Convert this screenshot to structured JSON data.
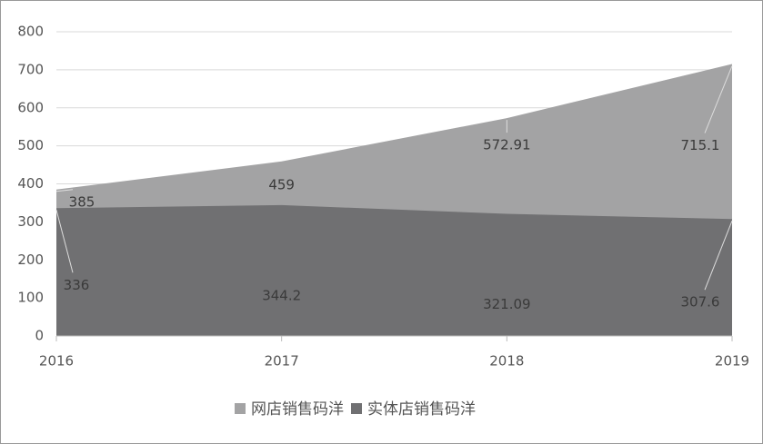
{
  "chart_data": {
    "type": "area",
    "categories": [
      "2016",
      "2017",
      "2018",
      "2019"
    ],
    "series": [
      {
        "name": "网店销售码洋",
        "color": "#a3a3a4",
        "values": [
          385,
          459,
          572.91,
          715.1
        ]
      },
      {
        "name": "实体店销售码洋",
        "color": "#707072",
        "values": [
          336,
          344.2,
          321.09,
          307.6
        ]
      }
    ],
    "ylim": [
      0,
      800
    ],
    "yticks": [
      0,
      100,
      200,
      300,
      400,
      500,
      600,
      700,
      800
    ],
    "grid": true,
    "legend": "bottom"
  }
}
